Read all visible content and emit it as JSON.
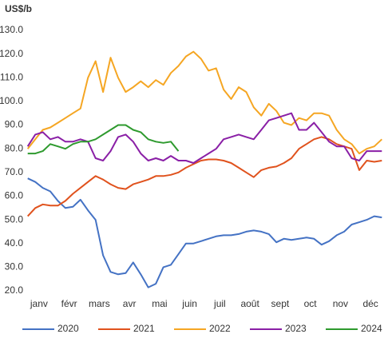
{
  "chart_data": {
    "type": "line",
    "title": "US$/b",
    "categories": [
      "janv",
      null,
      null,
      null,
      "févr",
      null,
      null,
      null,
      "mars",
      null,
      null,
      null,
      "avr",
      null,
      null,
      null,
      "mai",
      null,
      null,
      null,
      "juin",
      null,
      null,
      null,
      "juil",
      null,
      null,
      null,
      "août",
      null,
      null,
      null,
      "sept",
      null,
      null,
      null,
      "oct",
      null,
      null,
      null,
      "nov",
      null,
      null,
      null,
      "déc",
      null,
      null,
      null
    ],
    "series": [
      {
        "name": "2020",
        "color": "#4472c4",
        "values": [
          67.5,
          66,
          63.5,
          62,
          58,
          55,
          55.5,
          58.5,
          54,
          50,
          35,
          28,
          27,
          27.5,
          32,
          27,
          21.5,
          23,
          30,
          31,
          35.5,
          40,
          40,
          41,
          42,
          43,
          43.5,
          43.5,
          44,
          45,
          45.5,
          45,
          44,
          40.5,
          42,
          41.5,
          42,
          42.5,
          42,
          39.5,
          41,
          43.5,
          45,
          48,
          49,
          50,
          51.5,
          51
        ]
      },
      {
        "name": "2021",
        "color": "#e0521d",
        "values": [
          51.5,
          55,
          56.5,
          56,
          56,
          58,
          61,
          63.5,
          66,
          68.5,
          67,
          65,
          63.5,
          63,
          65,
          66,
          67,
          68.5,
          68.5,
          69,
          70,
          72,
          73.5,
          75,
          75.5,
          75.5,
          75,
          74,
          72,
          70,
          68,
          71,
          72,
          72.5,
          74,
          76,
          80,
          82,
          84,
          85,
          84,
          82,
          81,
          80,
          71,
          75,
          74.5,
          75
        ]
      },
      {
        "name": "2022",
        "color": "#f5a623",
        "values": [
          80,
          84,
          88,
          89,
          91,
          93,
          95,
          97,
          110,
          117,
          104,
          118.5,
          110,
          104,
          106,
          108.5,
          106,
          109,
          107,
          112,
          115,
          119,
          121,
          118,
          113,
          114,
          105,
          101,
          106,
          104,
          97.5,
          94,
          99,
          96,
          91,
          90,
          93,
          92,
          95,
          95,
          94,
          88,
          84,
          82,
          78,
          80,
          81,
          84
        ]
      },
      {
        "name": "2023",
        "color": "#8a1fa6",
        "values": [
          81,
          86,
          87,
          84,
          85,
          83,
          83,
          84,
          83,
          76,
          75,
          79,
          85,
          86,
          83,
          78,
          75,
          76,
          75,
          77,
          75,
          75,
          74,
          76,
          78,
          80,
          84,
          85,
          86,
          85,
          84,
          88,
          92,
          93,
          94,
          95,
          88,
          88,
          91,
          87,
          83,
          81,
          81,
          76,
          75,
          79,
          79,
          79
        ]
      },
      {
        "name": "2024",
        "color": "#2e9a2e",
        "values": [
          78,
          78,
          79,
          82,
          81,
          80,
          82,
          83,
          83,
          84,
          86,
          88,
          90,
          90,
          88,
          87,
          84,
          83,
          82.5,
          83,
          79,
          null,
          null,
          null,
          null,
          null,
          null,
          null,
          null,
          null,
          null,
          null,
          null,
          null,
          null,
          null,
          null,
          null,
          null,
          null,
          null,
          null,
          null,
          null,
          null,
          null,
          null,
          null
        ]
      }
    ],
    "ylim": [
      20,
      130
    ],
    "yticks": [
      {
        "value": 20,
        "label": "20.0"
      },
      {
        "value": 30,
        "label": "30.0"
      },
      {
        "value": 40,
        "label": "40.0"
      },
      {
        "value": 50,
        "label": "50.0"
      },
      {
        "value": 60,
        "label": "60.0"
      },
      {
        "value": 70,
        "label": "70.0"
      },
      {
        "value": 80,
        "label": "80.0"
      },
      {
        "value": 90,
        "label": "90.0"
      },
      {
        "value": 100,
        "label": "100.0"
      },
      {
        "value": 110,
        "label": "110.0"
      },
      {
        "value": 120,
        "label": "120.0"
      },
      {
        "value": 130,
        "label": "130.0"
      }
    ],
    "grid": false
  }
}
